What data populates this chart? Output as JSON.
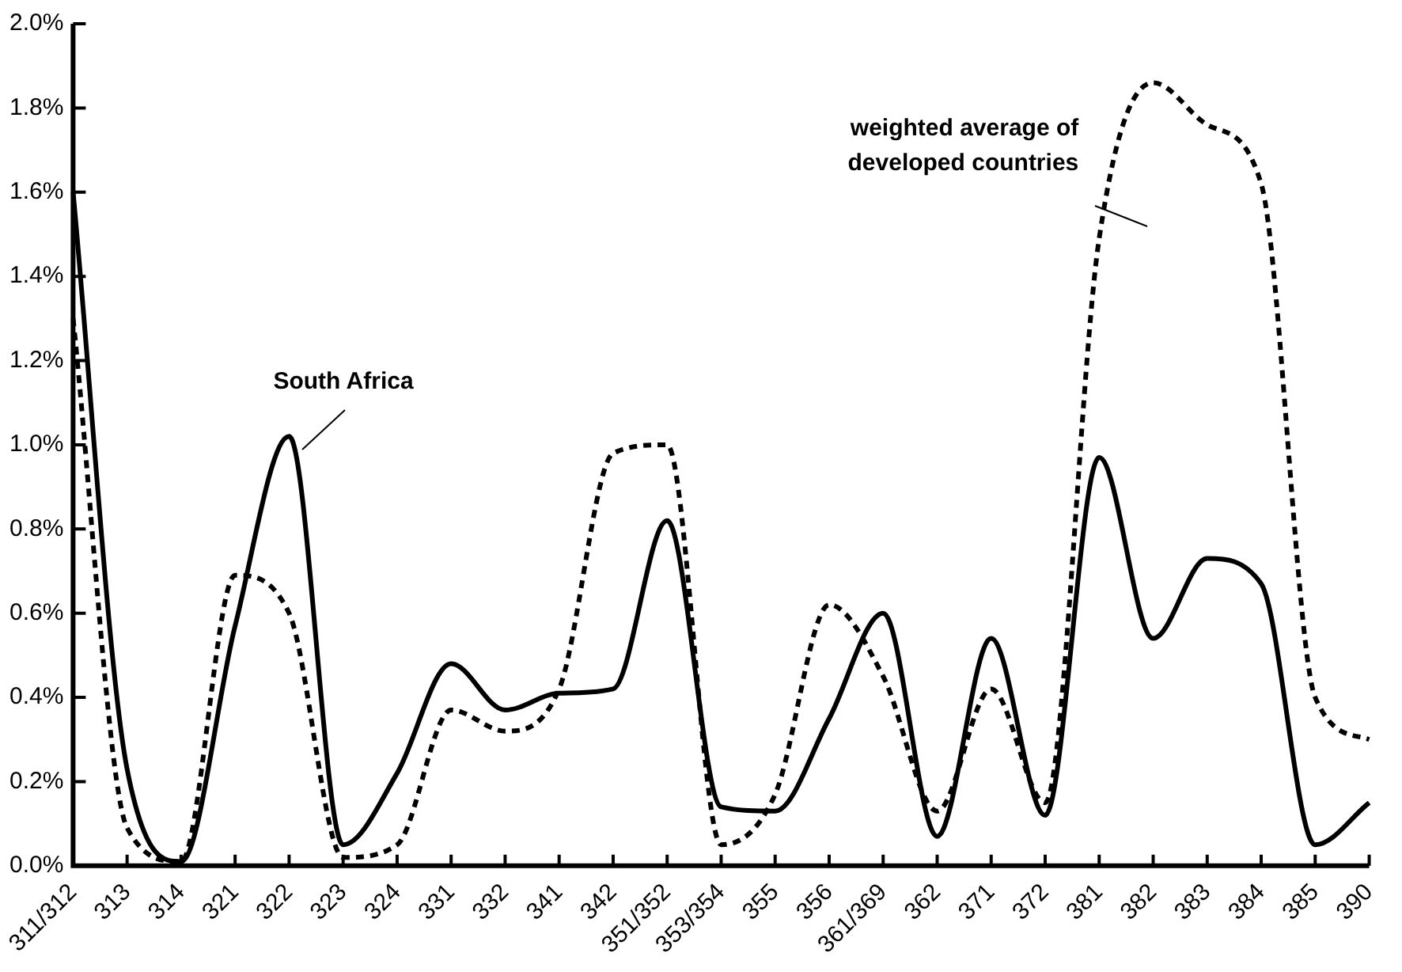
{
  "chart_data": {
    "type": "line",
    "categories": [
      "311/312",
      "313",
      "314",
      "321",
      "322",
      "323",
      "324",
      "331",
      "332",
      "341",
      "342",
      "351/352",
      "353/354",
      "355",
      "356",
      "361/369",
      "362",
      "371",
      "372",
      "381",
      "382",
      "383",
      "384",
      "385",
      "390"
    ],
    "series": [
      {
        "name": "South Africa",
        "color": "#000000",
        "line_style": "solid",
        "values": [
          1.6,
          0.23,
          0.01,
          0.57,
          1.02,
          0.05,
          0.22,
          0.48,
          0.37,
          0.41,
          0.42,
          0.82,
          0.14,
          0.13,
          0.35,
          0.6,
          0.07,
          0.54,
          0.12,
          0.97,
          0.54,
          0.73,
          0.67,
          0.05,
          0.15
        ]
      },
      {
        "name": "weighted average of developed countries",
        "color": "#000000",
        "line_style": "dashed",
        "values": [
          1.3,
          0.09,
          0.01,
          0.69,
          0.6,
          0.02,
          0.05,
          0.37,
          0.32,
          0.42,
          0.98,
          1.0,
          0.05,
          0.17,
          0.62,
          0.45,
          0.13,
          0.42,
          0.15,
          1.49,
          1.86,
          1.76,
          1.62,
          0.4,
          0.3
        ]
      }
    ],
    "ylim": [
      0,
      2
    ],
    "yticks": [
      {
        "value": 0,
        "label": "0.0%"
      },
      {
        "value": 0.2,
        "label": "0.2%"
      },
      {
        "value": 0.4,
        "label": "0.4%"
      },
      {
        "value": 0.6,
        "label": "0.6%"
      },
      {
        "value": 0.8,
        "label": "0.8%"
      },
      {
        "value": 1,
        "label": "1.0%"
      },
      {
        "value": 1.2,
        "label": "1.2%"
      },
      {
        "value": 1.4,
        "label": "1.4%"
      },
      {
        "value": 1.6,
        "label": "1.6%"
      },
      {
        "value": 1.8,
        "label": "1.8%"
      },
      {
        "value": 2,
        "label": "2.0%"
      }
    ],
    "grid": false,
    "legend": false,
    "marker": "none"
  }
}
